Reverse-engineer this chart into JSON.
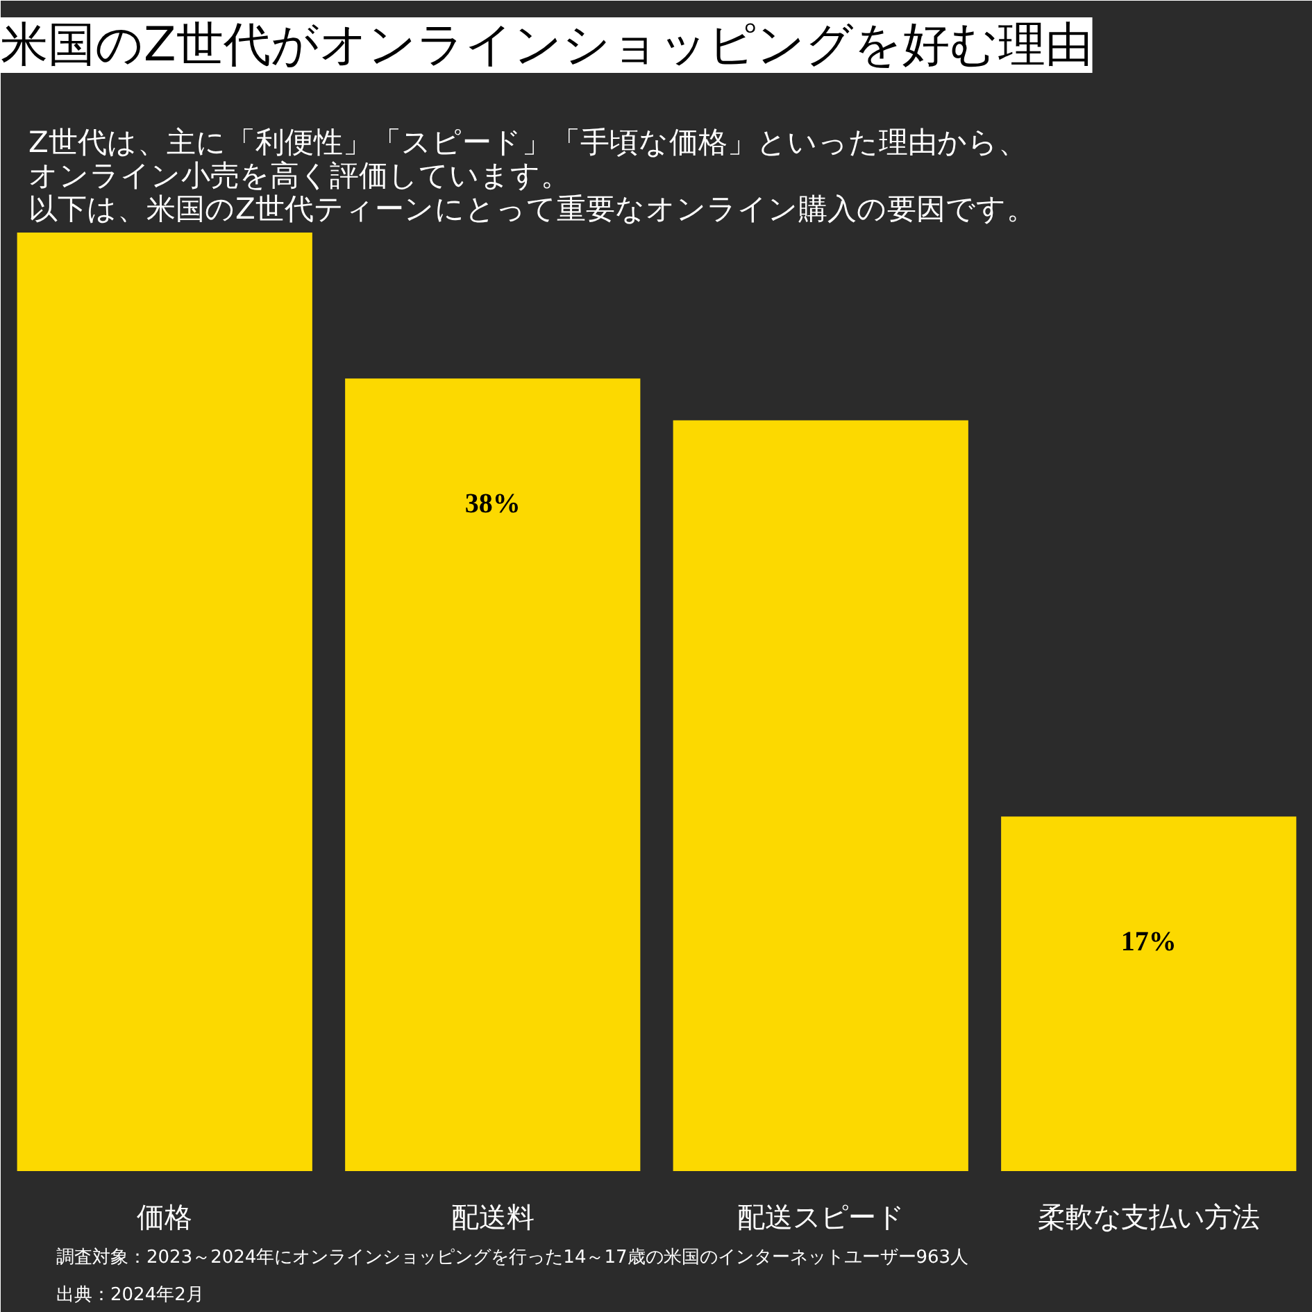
{
  "chart_data": {
    "type": "bar",
    "title": "米国のZ世代がオンラインショッピングを好む理由",
    "subtitle": "Z世代は、主に「利便性」「スピード」「手頃な価格」といった理由から、オンライン小売を高く評価しています。以下は、米国のZ世代ティーンにとって重要なオンライン購入の要因です。",
    "categories": [
      "価格",
      "配送料",
      "配送スピード",
      "柔軟な支払い方法"
    ],
    "values": [
      45,
      38,
      36,
      17
    ],
    "value_labels": [
      null,
      "38%",
      null,
      "17%"
    ],
    "color": "#fcd900",
    "grid": false,
    "annotations": [
      "調査対象：2023～2024年にオンラインショッピングを行った14～17歳の米国のインターネットユーザー963人",
      "出典：2024年2月"
    ]
  }
}
